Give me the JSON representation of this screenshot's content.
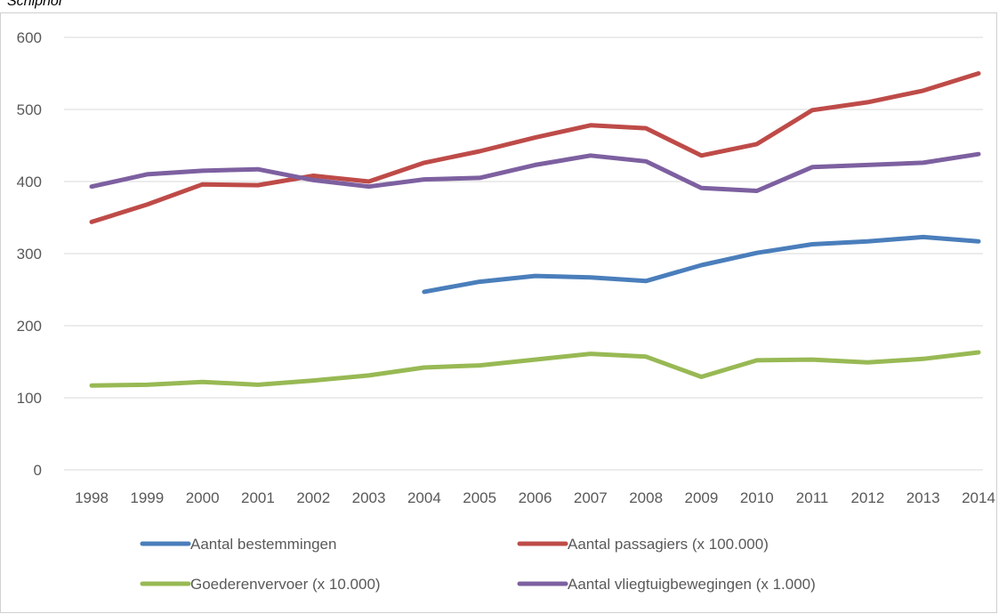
{
  "chart_data": {
    "type": "line",
    "title": "Schiphol",
    "xlabel": "",
    "ylabel": "",
    "ylim": [
      0,
      600
    ],
    "yticks": [
      0,
      100,
      200,
      300,
      400,
      500,
      600
    ],
    "grid": true,
    "legend_position": "bottom",
    "categories": [
      "1998",
      "1999",
      "2000",
      "2001",
      "2002",
      "2003",
      "2004",
      "2005",
      "2006",
      "2007",
      "2008",
      "2009",
      "2010",
      "2011",
      "2012",
      "2013",
      "2014"
    ],
    "series": [
      {
        "name": "Aantal bestemmingen",
        "color": "#4a7ebb",
        "values": [
          null,
          null,
          null,
          null,
          null,
          null,
          247,
          261,
          269,
          267,
          262,
          284,
          301,
          313,
          317,
          323,
          317
        ]
      },
      {
        "name": "Aantal passagiers (x 100.000)",
        "color": "#be4b48",
        "values": [
          344,
          368,
          396,
          395,
          408,
          400,
          426,
          442,
          461,
          478,
          474,
          436,
          452,
          499,
          510,
          526,
          550
        ]
      },
      {
        "name": "Goederenvervoer (x 10.000)",
        "color": "#98b954",
        "values": [
          117,
          118,
          122,
          118,
          124,
          131,
          142,
          145,
          153,
          161,
          157,
          129,
          152,
          153,
          149,
          154,
          163
        ]
      },
      {
        "name": "Aantal vliegtuigbewegingen (x 1.000)",
        "color": "#7d60a0",
        "values": [
          393,
          410,
          415,
          417,
          402,
          393,
          403,
          405,
          423,
          436,
          428,
          391,
          387,
          420,
          423,
          426,
          438
        ]
      }
    ]
  }
}
